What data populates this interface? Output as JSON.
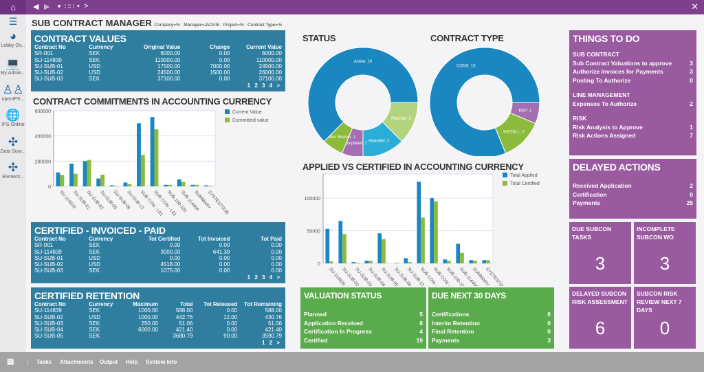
{
  "topbar": {
    "home_icon": "home-icon",
    "nav": [
      "back-icon",
      "forward-icon",
      "dropdown-icon",
      "grid-icon",
      "dot-icon",
      "chevron-right-icon"
    ]
  },
  "sidebar": {
    "items": [
      {
        "label": "Lobby Ov...",
        "icon": "gauge-icon"
      },
      {
        "label": "My Admin...",
        "icon": "computer-icon"
      },
      {
        "label": "openIPS...",
        "icon": "people-icon"
      },
      {
        "label": "IPS Online",
        "icon": "globe-icon"
      },
      {
        "label": "Data Sour...",
        "icon": "puzzle-icon"
      },
      {
        "label": "Element...",
        "icon": "puzzle-icon"
      }
    ]
  },
  "header": {
    "title": "SUB CONTRACT MANAGER",
    "filters": "Company=% : Manager=JACKIE : Project=% : Contract Type=%"
  },
  "contract_values": {
    "title": "CONTRACT VALUES",
    "columns": [
      "Contract No",
      "Currency",
      "Original Value",
      "Change",
      "Current Value"
    ],
    "rows": [
      [
        "SR-001",
        "SEK",
        "6000.00",
        "0.00",
        "6000.00"
      ],
      [
        "SU-114839",
        "SEK",
        "110000.00",
        "0.00",
        "110000.00"
      ],
      [
        "SU-SUB-01",
        "USD",
        "17500.00",
        "7000.00",
        "24500.00"
      ],
      [
        "SU-SUB-02",
        "USD",
        "24500.00",
        "1500.00",
        "26000.00"
      ],
      [
        "SU-SUB-03",
        "SEK",
        "37100.00",
        "0.00",
        "37100.00"
      ]
    ],
    "pager": "1 2 3 4 >"
  },
  "certified_invoiced": {
    "title": "CERTIFIED - INVOICED - PAID",
    "columns": [
      "Contract No",
      "Currency",
      "Tot Certified",
      "Tot Invoiced",
      "Tot Paid"
    ],
    "rows": [
      [
        "SR-001",
        "SEK",
        "0.00",
        "0.00",
        "0.00"
      ],
      [
        "SU-114839",
        "SEK",
        "3000.00",
        "641.39",
        "0.00"
      ],
      [
        "SU-SUB-01",
        "USD",
        "0.00",
        "0.00",
        "0.00"
      ],
      [
        "SU-SUB-02",
        "USD",
        "4518.00",
        "0.00",
        "0.00"
      ],
      [
        "SU-SUB-03",
        "SEK",
        "1075.00",
        "0.00",
        "0.00"
      ]
    ],
    "pager": "1 2 3 4 >"
  },
  "certified_retention": {
    "title": "CERTIFIED RETENTION",
    "columns": [
      "Contract No",
      "Currency",
      "Maximum",
      "Total",
      "Tot Released",
      "Tot Remaining"
    ],
    "rows": [
      [
        "SU-114839",
        "SEK",
        "1000.00",
        "588.00",
        "0.00",
        "588.00"
      ],
      [
        "SU-SUB-02",
        "USD",
        "1000.00",
        "442.76",
        "12.00",
        "430.76"
      ],
      [
        "SU-SUB-03",
        "SEK",
        "250.00",
        "51.06",
        "0.00",
        "51.06"
      ],
      [
        "SU-SUB-04",
        "SEK",
        "6000.00",
        "421.40",
        "0.00",
        "421.40"
      ],
      [
        "SU-SUB-05",
        "SEK",
        "",
        "3680.79",
        "90.00",
        "3590.79"
      ]
    ],
    "pager": "1 2 >"
  },
  "chart_data": [
    {
      "type": "bar",
      "title": "CONTRACT COMMITMENTS IN ACCOUNTING CURRENCY",
      "categories": [
        "SU-114839",
        "SU-SUB-01",
        "SU-SUB-02",
        "SU-SUB-05",
        "SU-SUB-06",
        "SU-SUB-12",
        "SUB CON - L01",
        "SUB CON - L02",
        "SUB-100-100",
        "SUB-114494",
        "SUMMARY",
        "SYSTESTSUB"
      ],
      "series": [
        {
          "name": "Current Value",
          "color": "#1a87c0",
          "values": [
            110000,
            180000,
            200000,
            62000,
            8000,
            30000,
            500000,
            550000,
            12000,
            55000,
            12000,
            8000
          ]
        },
        {
          "name": "Committed value",
          "color": "#8cbb3c",
          "values": [
            90000,
            100000,
            210000,
            92000,
            4000,
            18000,
            250000,
            452000,
            12000,
            35000,
            12000,
            5000
          ]
        }
      ],
      "ylim": [
        0,
        600000
      ],
      "yticks": [
        "0",
        "200000",
        "400000",
        "600000"
      ],
      "legend": "right"
    },
    {
      "type": "pie",
      "title": "STATUS",
      "donut": true,
      "slices": [
        {
          "label": "Planned: 2",
          "value": 2,
          "color": "#b3d47e"
        },
        {
          "label": "Awarded: 2",
          "value": 2,
          "color": "#2aaed8"
        },
        {
          "label": "Completed: 1",
          "value": 1,
          "color": "#a46fb2"
        },
        {
          "label": "Under Review: 1",
          "value": 1,
          "color": "#8cbb3c"
        },
        {
          "label": "Active: 10",
          "value": 10,
          "color": "#1a87c0"
        }
      ]
    },
    {
      "type": "pie",
      "title": "CONTRACT TYPE",
      "donut": true,
      "slices": [
        {
          "label": "REF: 1",
          "value": 1,
          "color": "#a46fb2"
        },
        {
          "label": "INSTALL: 2",
          "value": 2,
          "color": "#8cbb3c"
        },
        {
          "label": "CONS: 13",
          "value": 13,
          "color": "#1a87c0"
        }
      ]
    },
    {
      "type": "bar",
      "title": "APPLIED VS CERTIFIED IN ACCOUNTING CURRENCY",
      "categories": [
        "SU-114839",
        "SU-SUB-02",
        "SU-SUB-03",
        "SU-SUB-04",
        "SU-SUB-05",
        "SU-SUB-06",
        "SU-SUB-12",
        "SUB CON - L01",
        "SUB CON - L02",
        "SUB-100-100",
        "SUB-114494",
        "SUMMARY",
        "SYSTESTSUB"
      ],
      "series": [
        {
          "name": "Total Applied",
          "color": "#1a87c0",
          "values": [
            53000,
            65000,
            2000,
            4000,
            46000,
            0,
            8000,
            125000,
            100000,
            6000,
            30000,
            5000,
            5000
          ]
        },
        {
          "name": "Total Certified",
          "color": "#8cbb3c",
          "values": [
            3000,
            45000,
            1000,
            4000,
            37000,
            1000,
            2000,
            70000,
            95000,
            4000,
            16000,
            4000,
            5000
          ]
        }
      ],
      "ylim": [
        0,
        137000
      ],
      "yticks": [
        "0",
        "50000",
        "100000"
      ],
      "legend": "right"
    }
  ],
  "valuation_status": {
    "title": "VALUATION STATUS",
    "rows": [
      [
        "Planned",
        "5"
      ],
      [
        "Application Received",
        "8"
      ],
      [
        "Certification In Progress",
        "4"
      ],
      [
        "Certified",
        "19"
      ]
    ]
  },
  "due_next_30": {
    "title": "DUE NEXT 30 DAYS",
    "rows": [
      [
        "Certifications",
        "0"
      ],
      [
        "Interim Retention",
        "0"
      ],
      [
        "Final Retention",
        "0"
      ],
      [
        "Payments",
        "3"
      ]
    ]
  },
  "things_to_do": {
    "title": "THINGS TO DO",
    "groups": [
      {
        "name": "SUB CONTRACT",
        "rows": [
          [
            "Sub Contract Valuations to approve",
            "3"
          ],
          [
            "Authorize Invoices for Payments",
            "3"
          ],
          [
            "Posting To Authorize",
            "0"
          ]
        ]
      },
      {
        "name": "LINE MANAGEMENT",
        "rows": [
          [
            "Expenses To Authorize",
            "2"
          ]
        ]
      },
      {
        "name": "RISK",
        "rows": [
          [
            "Risk Analysis to Approve",
            "1"
          ],
          [
            "Risk Actions Assigned",
            "7"
          ]
        ]
      }
    ]
  },
  "delayed_actions": {
    "title": "DELAYED ACTIONS",
    "rows": [
      [
        "Received Application",
        "2"
      ],
      [
        "Certification",
        "0"
      ],
      [
        "Payments",
        "25"
      ]
    ]
  },
  "tiles": [
    {
      "title": "DUE SUBCON TASKS",
      "value": "3"
    },
    {
      "title": "INCOMPLETE SUBCON WO",
      "value": "3"
    },
    {
      "title": "DELAYED SUBCON RISK ASSESSMENT",
      "value": "6"
    },
    {
      "title": "SUBCON RISK REVIEW NEXT 7 DAYS",
      "value": "0"
    }
  ],
  "bottombar": {
    "items": [
      "Tasks",
      "Attachments",
      "Output",
      "Help",
      "System Info"
    ]
  }
}
